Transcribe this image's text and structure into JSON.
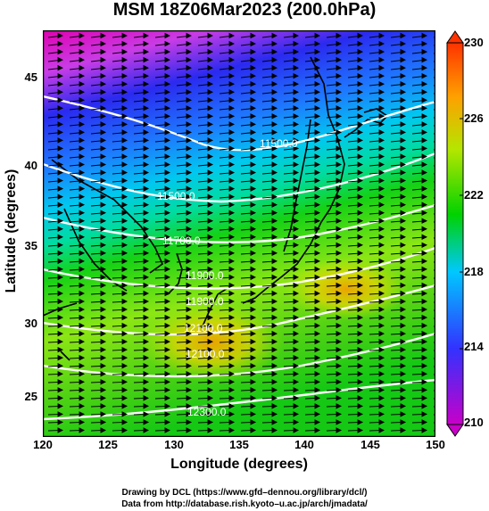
{
  "title": "MSM 18Z06Mar2023 (200.0hPa)",
  "xlabel": "Longitude (degrees)",
  "ylabel": "Latitude  (degrees)",
  "x_ticks": [
    "120",
    "125",
    "130",
    "135",
    "140",
    "145",
    "150"
  ],
  "y_ticks": [
    "45",
    "40",
    "35",
    "30",
    "25"
  ],
  "colorbar": {
    "ticks": [
      "230",
      "226",
      "222",
      "218",
      "214",
      "210"
    ],
    "min": 210,
    "max": 230,
    "colors": [
      "#c800c8",
      "#3232ff",
      "#00c8ff",
      "#00d200",
      "#b4e600",
      "#ffa000",
      "#ff3200"
    ]
  },
  "contour_labels": [
    "11500.0",
    "11500.0",
    "11700.0",
    "11900.0",
    "11900.0",
    "12100.0",
    "12100.0",
    "12300.0"
  ],
  "credits": {
    "line1": "Drawing by DCL (https://www.gfd–dennou.org/library/dcl/)",
    "line2": "Data from http://database.rish.kyoto–u.ac.jp/arch/jmadata/"
  },
  "map": {
    "lon_range": [
      120,
      150
    ],
    "lat_range": [
      22.4,
      47.6
    ],
    "wind_direction": "westerly"
  }
}
